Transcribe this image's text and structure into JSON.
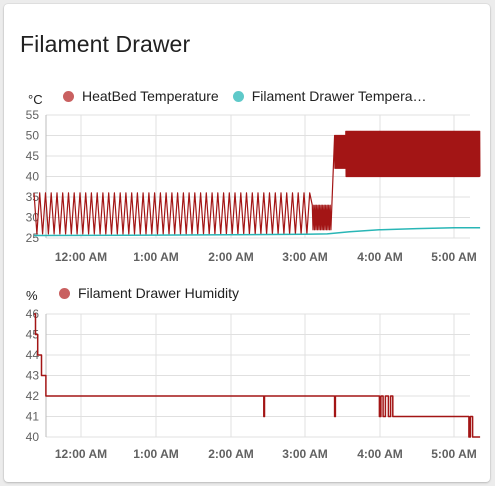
{
  "card": {
    "title": "Filament Drawer"
  },
  "colors": {
    "heatbed": "#a31515",
    "heatbed_dot": "#c96060",
    "drawer_temp": "#29b6b6",
    "drawer_temp_dot": "#5ec9c9",
    "humidity": "#a31515",
    "humidity_dot": "#c96060",
    "grid": "#e0e0e0"
  },
  "chart_data": [
    {
      "type": "line",
      "unit": "°C",
      "legend": [
        {
          "name": "HeatBed Temperature",
          "color": "heatbed_dot"
        },
        {
          "name": "Filament Drawer Tempera…",
          "color": "drawer_temp_dot"
        }
      ],
      "y_ticks": [
        "55",
        "50",
        "45",
        "40",
        "35",
        "30",
        "25"
      ],
      "ylim": [
        25,
        55
      ],
      "x_ticks": [
        "12:00 AM",
        "1:00 AM",
        "2:00 AM",
        "3:00 AM",
        "4:00 AM",
        "5:00 AM"
      ],
      "xlim_hours": [
        -0.63,
        5.35
      ],
      "series": [
        {
          "name": "HeatBed Temperature",
          "description_segments": [
            {
              "from": -0.63,
              "to": 3.1,
              "low": 26,
              "high": 36,
              "period_hours": 0.077
            },
            {
              "from": 3.1,
              "to": 3.35,
              "low": 27,
              "high": 33,
              "period_hours": 0.02
            },
            {
              "from": 3.4,
              "to": 3.55,
              "low": 42,
              "high": 50,
              "period_hours": 0.006
            },
            {
              "from": 3.55,
              "to": 5.35,
              "low": 40,
              "high": 51,
              "period_hours": 0.006
            }
          ]
        },
        {
          "name": "Filament Drawer Tempera…",
          "x": [
            -0.63,
            1.0,
            2.0,
            3.0,
            3.3,
            3.6,
            4.0,
            4.5,
            5.0,
            5.35
          ],
          "y": [
            25.6,
            25.7,
            25.8,
            25.9,
            26.0,
            26.5,
            27.0,
            27.3,
            27.5,
            27.5
          ]
        }
      ]
    },
    {
      "type": "line",
      "unit": "%",
      "legend": [
        {
          "name": "Filament Drawer Humidity",
          "color": "humidity_dot"
        }
      ],
      "y_ticks": [
        "46",
        "45",
        "44",
        "43",
        "42",
        "41",
        "40"
      ],
      "ylim": [
        40,
        46
      ],
      "x_ticks": [
        "12:00 AM",
        "1:00 AM",
        "2:00 AM",
        "3:00 AM",
        "4:00 AM",
        "5:00 AM"
      ],
      "xlim_hours": [
        -0.63,
        5.35
      ],
      "series": [
        {
          "name": "Filament Drawer Humidity",
          "x": [
            -0.63,
            -0.61,
            -0.61,
            -0.58,
            -0.58,
            -0.53,
            -0.53,
            -0.47,
            -0.47,
            2.45,
            2.45,
            2.46,
            2.46,
            3.4,
            3.4,
            3.41,
            3.41,
            4.0,
            4.0,
            4.02,
            4.02,
            4.05,
            4.05,
            4.08,
            4.08,
            4.12,
            4.12,
            4.15,
            4.15,
            4.18,
            4.18,
            4.22,
            4.22,
            5.2,
            5.2,
            5.22,
            5.22,
            5.25,
            5.25,
            5.35
          ],
          "y": [
            46,
            46,
            45,
            45,
            44,
            44,
            43,
            43,
            42,
            42,
            41,
            41,
            42,
            42,
            41,
            41,
            42,
            42,
            41,
            41,
            42,
            42,
            41,
            41,
            42,
            42,
            41,
            41,
            42,
            42,
            41,
            41,
            41,
            41,
            40,
            40,
            41,
            41,
            40,
            40
          ]
        }
      ]
    }
  ]
}
